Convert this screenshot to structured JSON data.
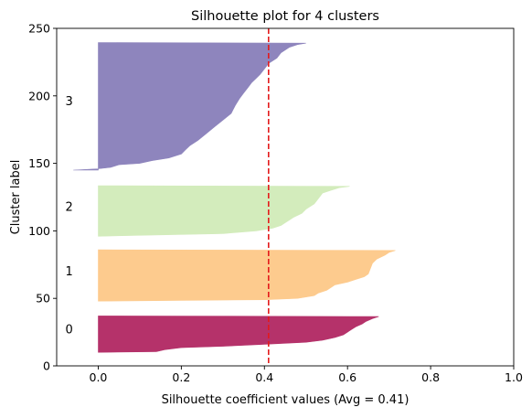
{
  "chart_data": {
    "type": "area",
    "title": "Silhouette plot for 4 clusters",
    "xlabel": "Silhouette coefficient values (Avg = 0.41)",
    "ylabel": "Cluster label",
    "xlim": [
      -0.1,
      1.0
    ],
    "ylim": [
      0,
      250
    ],
    "xticks": [
      "0.0",
      "0.2",
      "0.4",
      "0.6",
      "0.8",
      "1.0"
    ],
    "xtick_values": [
      0.0,
      0.2,
      0.4,
      0.6,
      0.8,
      1.0
    ],
    "yticks": [
      "0",
      "50",
      "100",
      "150",
      "200",
      "250"
    ],
    "ytick_values": [
      0,
      50,
      100,
      150,
      200,
      250
    ],
    "grid": false,
    "average_line": {
      "value": 0.41,
      "color": "#e41a1c",
      "style": "dashed"
    },
    "series": [
      {
        "label": "0",
        "label_y": 27,
        "y_start": 10,
        "color": "#b5326a",
        "profile": [
          [
            10,
            0.0
          ],
          [
            10.5,
            0.14
          ],
          [
            12,
            0.16
          ],
          [
            13.5,
            0.2
          ],
          [
            14.5,
            0.3
          ],
          [
            16,
            0.4
          ],
          [
            17.5,
            0.5
          ],
          [
            19,
            0.54
          ],
          [
            21,
            0.57
          ],
          [
            23,
            0.59
          ],
          [
            25,
            0.6
          ],
          [
            27,
            0.61
          ],
          [
            29,
            0.62
          ],
          [
            31,
            0.635
          ],
          [
            33,
            0.645
          ],
          [
            35,
            0.66
          ],
          [
            36.5,
            0.675
          ],
          [
            37,
            0.0
          ]
        ]
      },
      {
        "label": "1",
        "label_y": 70,
        "y_start": 48,
        "color": "#fdcb8e",
        "profile": [
          [
            48,
            0.0
          ],
          [
            48.5,
            0.2
          ],
          [
            49,
            0.4
          ],
          [
            50,
            0.48
          ],
          [
            51,
            0.5
          ],
          [
            52,
            0.52
          ],
          [
            54,
            0.53
          ],
          [
            56,
            0.55
          ],
          [
            58,
            0.56
          ],
          [
            60,
            0.57
          ],
          [
            62,
            0.6
          ],
          [
            64,
            0.62
          ],
          [
            66,
            0.64
          ],
          [
            68,
            0.65
          ],
          [
            72,
            0.655
          ],
          [
            76,
            0.66
          ],
          [
            79,
            0.67
          ],
          [
            82,
            0.69
          ],
          [
            84,
            0.7
          ],
          [
            85.5,
            0.715
          ],
          [
            86,
            0.0
          ]
        ]
      },
      {
        "label": "2",
        "label_y": 118,
        "y_start": 96,
        "color": "#d3ecbc",
        "profile": [
          [
            96,
            0.0
          ],
          [
            97,
            0.15
          ],
          [
            98,
            0.3
          ],
          [
            100,
            0.38
          ],
          [
            102,
            0.42
          ],
          [
            104,
            0.44
          ],
          [
            106,
            0.45
          ],
          [
            108,
            0.46
          ],
          [
            110,
            0.47
          ],
          [
            113,
            0.49
          ],
          [
            116,
            0.5
          ],
          [
            118,
            0.51
          ],
          [
            120,
            0.52
          ],
          [
            124,
            0.53
          ],
          [
            128,
            0.54
          ],
          [
            130,
            0.56
          ],
          [
            132,
            0.58
          ],
          [
            133,
            0.605
          ],
          [
            133.5,
            0.0
          ]
        ]
      },
      {
        "label": "3",
        "label_y": 196,
        "y_start": 145,
        "color": "#8e85bd",
        "profile": [
          [
            145,
            -0.06
          ],
          [
            146,
            0.0
          ],
          [
            147,
            0.03
          ],
          [
            149,
            0.05
          ],
          [
            150,
            0.1
          ],
          [
            152,
            0.13
          ],
          [
            154,
            0.17
          ],
          [
            157,
            0.2
          ],
          [
            160,
            0.21
          ],
          [
            163,
            0.22
          ],
          [
            167,
            0.24
          ],
          [
            172,
            0.26
          ],
          [
            177,
            0.28
          ],
          [
            182,
            0.3
          ],
          [
            187,
            0.32
          ],
          [
            193,
            0.33
          ],
          [
            198,
            0.34
          ],
          [
            202,
            0.35
          ],
          [
            206,
            0.36
          ],
          [
            210,
            0.37
          ],
          [
            213,
            0.38
          ],
          [
            216,
            0.39
          ],
          [
            220,
            0.4
          ],
          [
            224,
            0.41
          ],
          [
            228,
            0.43
          ],
          [
            232,
            0.44
          ],
          [
            236,
            0.46
          ],
          [
            238,
            0.48
          ],
          [
            239,
            0.5
          ],
          [
            239.5,
            0.0
          ]
        ]
      }
    ]
  }
}
